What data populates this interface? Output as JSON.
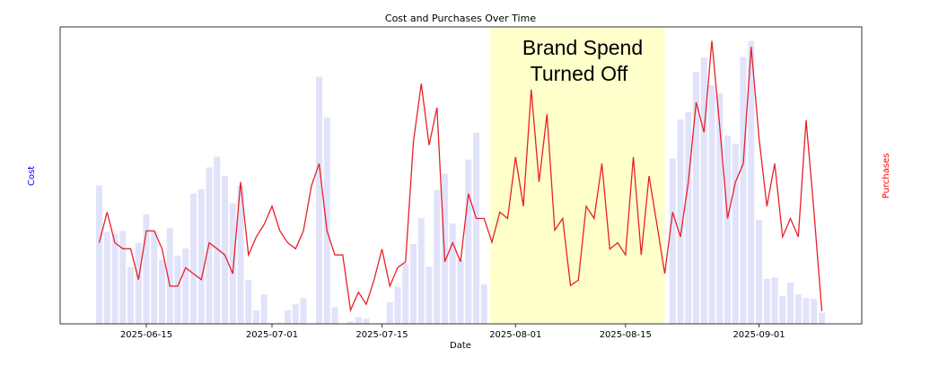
{
  "chart_data": {
    "type": "bar+line",
    "title": "Cost and Purchases Over Time",
    "xlabel": "Date",
    "ylabel_left": "Cost",
    "ylabel_right": "Purchases",
    "ylim": [
      0,
      100
    ],
    "grid": false,
    "x_tick_labels": [
      "2025-06-15",
      "2025-07-01",
      "2025-07-15",
      "2025-08-01",
      "2025-08-15",
      "2025-09-01"
    ],
    "annotation": {
      "lines": [
        "Brand Spend",
        "Turned Off"
      ],
      "span": [
        "2025-07-29",
        "2025-08-20"
      ],
      "color": "#ffffcc"
    },
    "dates": [
      "2025-06-09",
      "2025-06-10",
      "2025-06-11",
      "2025-06-12",
      "2025-06-13",
      "2025-06-14",
      "2025-06-15",
      "2025-06-16",
      "2025-06-17",
      "2025-06-18",
      "2025-06-19",
      "2025-06-20",
      "2025-06-21",
      "2025-06-22",
      "2025-06-23",
      "2025-06-24",
      "2025-06-25",
      "2025-06-26",
      "2025-06-27",
      "2025-06-28",
      "2025-06-29",
      "2025-06-30",
      "2025-07-01",
      "2025-07-02",
      "2025-07-03",
      "2025-07-04",
      "2025-07-05",
      "2025-07-06",
      "2025-07-07",
      "2025-07-08",
      "2025-07-09",
      "2025-07-10",
      "2025-07-11",
      "2025-07-12",
      "2025-07-13",
      "2025-07-14",
      "2025-07-15",
      "2025-07-16",
      "2025-07-17",
      "2025-07-18",
      "2025-07-19",
      "2025-07-20",
      "2025-07-21",
      "2025-07-22",
      "2025-07-23",
      "2025-07-24",
      "2025-07-25",
      "2025-07-26",
      "2025-07-27",
      "2025-07-28",
      "2025-07-29",
      "2025-07-30",
      "2025-07-31",
      "2025-08-01",
      "2025-08-02",
      "2025-08-03",
      "2025-08-04",
      "2025-08-05",
      "2025-08-06",
      "2025-08-07",
      "2025-08-08",
      "2025-08-09",
      "2025-08-10",
      "2025-08-11",
      "2025-08-12",
      "2025-08-13",
      "2025-08-14",
      "2025-08-15",
      "2025-08-16",
      "2025-08-17",
      "2025-08-18",
      "2025-08-19",
      "2025-08-20",
      "2025-08-21",
      "2025-08-22",
      "2025-08-23",
      "2025-08-24",
      "2025-08-25",
      "2025-08-26",
      "2025-08-27",
      "2025-08-28",
      "2025-08-29",
      "2025-08-30",
      "2025-08-31",
      "2025-09-01",
      "2025-09-02",
      "2025-09-03",
      "2025-09-04",
      "2025-09-05",
      "2025-09-06",
      "2025-09-07",
      "2025-09-08",
      "2025-09-09"
    ],
    "series": [
      {
        "name": "Cost",
        "type": "bar",
        "color": "#e1e3fb",
        "values": [
          46.6,
          31,
          30.3,
          31.3,
          19.1,
          27.3,
          36.9,
          31.3,
          21.7,
          32.2,
          23.0,
          25.4,
          43.9,
          45.3,
          52.7,
          56.3,
          49.9,
          40.6,
          46.6,
          14.7,
          4.6,
          9.9,
          0.3,
          0.5,
          4.6,
          6.6,
          8.7,
          0,
          83.2,
          69.4,
          5.6,
          0,
          0.8,
          2.3,
          1.7,
          0,
          0,
          7.3,
          12.4,
          20.2,
          26.9,
          35.6,
          19.3,
          45.0,
          50.6,
          33.8,
          21.5,
          55.3,
          64.4,
          13.3,
          0,
          0,
          0,
          0,
          0,
          0,
          0,
          0,
          0,
          0,
          0,
          0,
          0,
          0,
          0,
          0,
          0,
          0,
          0,
          0,
          0,
          0,
          0,
          55.7,
          68.8,
          71.3,
          84.9,
          89.7,
          80.4,
          77.6,
          63.4,
          60.7,
          89.9,
          95.3,
          35.0,
          15.2,
          15.6,
          9.4,
          13.9,
          9.9,
          8.7,
          8.4,
          3.8
        ]
      },
      {
        "name": "Purchases",
        "type": "line",
        "color": "#e8202a",
        "values": [
          27.3,
          37.6,
          27.3,
          25.3,
          25.3,
          14.9,
          31.3,
          31.3,
          25.3,
          12.7,
          12.7,
          18.9,
          16.9,
          14.9,
          27.3,
          25.3,
          23.2,
          16.9,
          47.8,
          23.2,
          29.3,
          33.5,
          39.6,
          31.3,
          27.3,
          25.3,
          31.3,
          46.3,
          54.0,
          31.3,
          23.2,
          23.2,
          4.6,
          10.7,
          6.6,
          14.9,
          25.2,
          12.7,
          18.9,
          20.9,
          61.2,
          80.9,
          60.2,
          72.8,
          20.9,
          27.3,
          20.9,
          43.8,
          35.5,
          35.5,
          27.5,
          37.6,
          35.5,
          56.2,
          39.6,
          78.9,
          47.8,
          70.6,
          31.5,
          35.5,
          12.9,
          14.7,
          39.6,
          35.5,
          54.0,
          25.2,
          27.3,
          23.2,
          56.2,
          23.2,
          49.8,
          33.5,
          16.9,
          37.6,
          29.3,
          47.8,
          74.6,
          64.5,
          95.3,
          66.3,
          35.5,
          47.8,
          54.0,
          93.3,
          62.7,
          39.6,
          54.0,
          29.3,
          35.5,
          29.3,
          68.6,
          37.6,
          4.3
        ]
      }
    ]
  }
}
